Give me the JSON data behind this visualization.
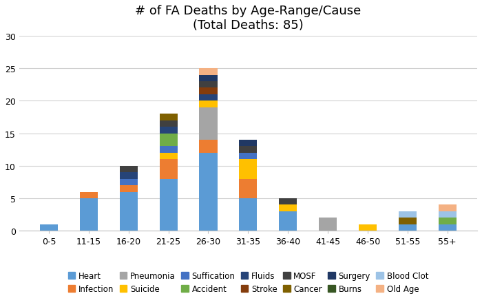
{
  "title": "# of FA Deaths by Age-Range/Cause\n(Total Deaths: 85)",
  "categories": [
    "0-5",
    "11-15",
    "16-20",
    "21-25",
    "26-30",
    "31-35",
    "36-40",
    "41-45",
    "46-50",
    "51-55",
    "55+"
  ],
  "causes": [
    "Heart",
    "Infection",
    "Pneumonia",
    "Suicide",
    "Suffication",
    "Accident",
    "Fluids",
    "Stroke",
    "MOSF",
    "Cancer",
    "Surgery",
    "Burns",
    "Blood Clot",
    "Old Age"
  ],
  "colors": {
    "Heart": "#5B9BD5",
    "Infection": "#ED7D31",
    "Pneumonia": "#A5A5A5",
    "Suicide": "#FFC000",
    "Suffication": "#4472C4",
    "Accident": "#70AD47",
    "Fluids": "#264478",
    "Stroke": "#843C0C",
    "MOSF": "#404040",
    "Cancer": "#7F6000",
    "Surgery": "#203864",
    "Burns": "#375623",
    "Blood Clot": "#9DC3E6",
    "Old Age": "#F4B183"
  },
  "data": {
    "Heart": [
      1,
      5,
      6,
      8,
      12,
      5,
      3,
      0,
      0,
      1,
      1
    ],
    "Infection": [
      0,
      1,
      1,
      3,
      2,
      3,
      0,
      0,
      0,
      0,
      0
    ],
    "Pneumonia": [
      0,
      0,
      0,
      0,
      5,
      0,
      0,
      2,
      0,
      0,
      0
    ],
    "Suicide": [
      0,
      0,
      0,
      1,
      1,
      3,
      1,
      0,
      1,
      0,
      0
    ],
    "Suffication": [
      0,
      0,
      1,
      1,
      0,
      1,
      0,
      0,
      0,
      0,
      0
    ],
    "Accident": [
      0,
      0,
      0,
      2,
      0,
      0,
      0,
      0,
      0,
      0,
      1
    ],
    "Fluids": [
      0,
      0,
      1,
      1,
      1,
      0,
      0,
      0,
      0,
      0,
      0
    ],
    "Stroke": [
      0,
      0,
      0,
      0,
      1,
      0,
      0,
      0,
      0,
      0,
      0
    ],
    "MOSF": [
      0,
      0,
      1,
      1,
      1,
      1,
      1,
      0,
      0,
      0,
      0
    ],
    "Cancer": [
      0,
      0,
      0,
      1,
      0,
      0,
      0,
      0,
      0,
      1,
      0
    ],
    "Surgery": [
      0,
      0,
      0,
      0,
      1,
      1,
      0,
      0,
      0,
      0,
      0
    ],
    "Burns": [
      0,
      0,
      0,
      0,
      0,
      0,
      0,
      0,
      0,
      0,
      0
    ],
    "Blood Clot": [
      0,
      0,
      0,
      0,
      0,
      0,
      0,
      0,
      0,
      1,
      1
    ],
    "Old Age": [
      0,
      0,
      0,
      0,
      1,
      0,
      0,
      0,
      0,
      0,
      1
    ]
  },
  "ylim": [
    0,
    30
  ],
  "yticks": [
    0,
    5,
    10,
    15,
    20,
    25,
    30
  ],
  "figsize": [
    7.0,
    4.31
  ],
  "dpi": 100,
  "bar_width": 0.45,
  "title_fontsize": 13,
  "tick_fontsize": 9,
  "legend_fontsize": 8.5
}
